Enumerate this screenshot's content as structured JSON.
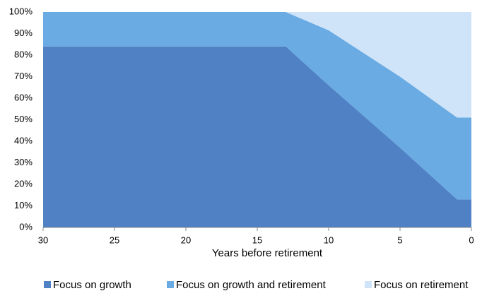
{
  "chart_data": {
    "type": "stacked_area",
    "x": [
      30,
      13,
      10,
      5,
      1,
      0
    ],
    "series": [
      {
        "name": "Focus on growth",
        "color": "#4f81c4",
        "values": [
          84,
          84,
          66,
          37,
          13,
          13
        ]
      },
      {
        "name": "Focus on growth and retirement",
        "color": "#6aabe3",
        "values": [
          16,
          16,
          25.5,
          33,
          38,
          38
        ]
      },
      {
        "name": "Focus on retirement",
        "color": "#cfe4f8",
        "values": [
          0,
          0,
          8.5,
          30,
          49,
          49
        ]
      }
    ],
    "xlabel": "Years before retirement",
    "xlim": [
      30,
      0
    ],
    "xticks": [
      30,
      25,
      20,
      15,
      10,
      5,
      0
    ],
    "ylim": [
      0,
      100
    ],
    "yticks": [
      {
        "value": 0,
        "label": "0%"
      },
      {
        "value": 10,
        "label": "10%"
      },
      {
        "value": 20,
        "label": "20%"
      },
      {
        "value": 30,
        "label": "30%"
      },
      {
        "value": 40,
        "label": "40%"
      },
      {
        "value": 50,
        "label": "50%"
      },
      {
        "value": 60,
        "label": "60%"
      },
      {
        "value": 70,
        "label": "70%"
      },
      {
        "value": 80,
        "label": "80%"
      },
      {
        "value": 90,
        "label": "90%"
      },
      {
        "value": 100,
        "label": "100%"
      }
    ],
    "grid": false,
    "legend": "bottom"
  }
}
